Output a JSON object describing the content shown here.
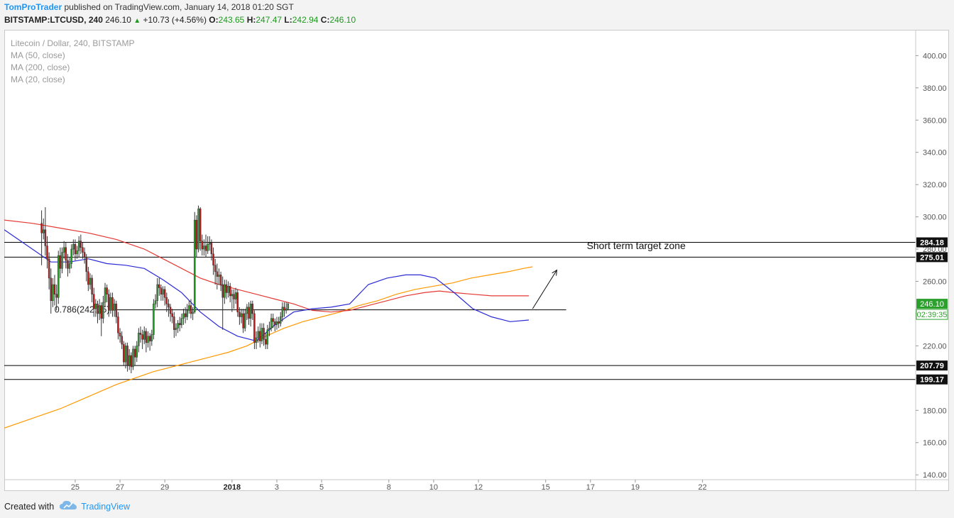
{
  "header": {
    "author": "TomProTrader",
    "published_text": "published on TradingView.com, January 14, 2018 01:20 SGT",
    "symbol_line": {
      "symbol": "BITSTAMP:LTCUSD, 240",
      "last": "246.10",
      "change": "+10.73 (+4.56%)",
      "o_label": "O:",
      "o_value": "243.65",
      "h_label": "H:",
      "h_value": "247.47",
      "l_label": "L:",
      "l_value": "242.94",
      "c_label": "C:",
      "c_value": "246.10"
    }
  },
  "legend": {
    "title": "Litecoin / Dollar, 240, BITSTAMP",
    "items": [
      "MA (50, close)",
      "MA (200, close)",
      "MA (20, close)"
    ]
  },
  "footer": {
    "created_with": "Created with",
    "brand": "TradingView"
  },
  "colors": {
    "up": "#2ca02c",
    "down": "#b81d1d",
    "ma50": "#e53935",
    "ma200": "#ff9800",
    "ma20": "#2a2ad6",
    "level_line": "#000000",
    "price_badge_green": "#2ca02c",
    "price_badge_black": "#111111"
  },
  "chart_data": {
    "type": "candlestick",
    "title": "Litecoin / Dollar, 240, BITSTAMP",
    "ylim": [
      137,
      416
    ],
    "x_range": [
      -20,
      326
    ],
    "y_ticks": [
      "140.00",
      "160.00",
      "180.00",
      "200.00",
      "220.00",
      "240.00",
      "260.00",
      "280.00",
      "300.00",
      "320.00",
      "340.00",
      "360.00",
      "380.00",
      "400.00"
    ],
    "x_ticks": [
      {
        "label": "25",
        "pos": 18
      },
      {
        "label": "27",
        "pos": 42
      },
      {
        "label": "29",
        "pos": 66
      },
      {
        "label": "2018",
        "pos": 102,
        "bold": true
      },
      {
        "label": "3",
        "pos": 126
      },
      {
        "label": "5",
        "pos": 150
      },
      {
        "label": "8",
        "pos": 186
      },
      {
        "label": "10",
        "pos": 210
      },
      {
        "label": "12",
        "pos": 234
      },
      {
        "label": "15",
        "pos": 270
      },
      {
        "label": "17",
        "pos": 294
      },
      {
        "label": "19",
        "pos": 318
      },
      {
        "label": "22",
        "pos": 354
      }
    ],
    "candles": [
      [
        296,
        290,
        304,
        270
      ],
      [
        290,
        292,
        299,
        286
      ],
      [
        292,
        282,
        306,
        276
      ],
      [
        282,
        274,
        288,
        268
      ],
      [
        274,
        262,
        278,
        255
      ],
      [
        262,
        248,
        268,
        240
      ],
      [
        248,
        258,
        262,
        244
      ],
      [
        258,
        252,
        264,
        245
      ],
      [
        252,
        250,
        258,
        242
      ],
      [
        250,
        276,
        279,
        246
      ],
      [
        276,
        268,
        281,
        262
      ],
      [
        268,
        278,
        281,
        265
      ],
      [
        278,
        281,
        285,
        274
      ],
      [
        281,
        273,
        284,
        268
      ],
      [
        273,
        268,
        277,
        263
      ],
      [
        268,
        271,
        275,
        265
      ],
      [
        271,
        280,
        283,
        268
      ],
      [
        280,
        283,
        286,
        276
      ],
      [
        283,
        277,
        286,
        273
      ],
      [
        277,
        279,
        282,
        274
      ],
      [
        279,
        285,
        288,
        275
      ],
      [
        285,
        281,
        289,
        277
      ],
      [
        281,
        278,
        284,
        274
      ],
      [
        278,
        275,
        281,
        271
      ],
      [
        275,
        266,
        277,
        260
      ],
      [
        266,
        258,
        269,
        254
      ],
      [
        258,
        262,
        265,
        255
      ],
      [
        262,
        252,
        264,
        247
      ],
      [
        252,
        243,
        256,
        238
      ],
      [
        243,
        246,
        249,
        238
      ],
      [
        246,
        240,
        248,
        234
      ],
      [
        240,
        245,
        249,
        236
      ],
      [
        245,
        237,
        247,
        226
      ],
      [
        237,
        247,
        251,
        234
      ],
      [
        247,
        256,
        259,
        244
      ],
      [
        256,
        252,
        258,
        247
      ],
      [
        252,
        242,
        255,
        238
      ],
      [
        242,
        250,
        253,
        240
      ],
      [
        250,
        242,
        253,
        238
      ],
      [
        242,
        246,
        249,
        238
      ],
      [
        246,
        238,
        248,
        234
      ],
      [
        238,
        228,
        241,
        224
      ],
      [
        228,
        226,
        231,
        222
      ],
      [
        226,
        221,
        229,
        218
      ],
      [
        221,
        210,
        223,
        208
      ],
      [
        210,
        220,
        222,
        206
      ],
      [
        220,
        208,
        222,
        204
      ],
      [
        208,
        214,
        218,
        205
      ],
      [
        214,
        207,
        216,
        203
      ],
      [
        207,
        218,
        220,
        205
      ],
      [
        218,
        213,
        220,
        208
      ],
      [
        213,
        220,
        223,
        210
      ],
      [
        220,
        228,
        231,
        216
      ],
      [
        228,
        227,
        232,
        222
      ],
      [
        227,
        224,
        230,
        218
      ],
      [
        224,
        229,
        232,
        221
      ],
      [
        229,
        222,
        231,
        216
      ],
      [
        222,
        226,
        229,
        219
      ],
      [
        226,
        223,
        228,
        217
      ],
      [
        223,
        227,
        230,
        220
      ],
      [
        227,
        246,
        249,
        224
      ],
      [
        246,
        248,
        252,
        243
      ],
      [
        248,
        258,
        262,
        244
      ],
      [
        258,
        256,
        262,
        251
      ],
      [
        256,
        252,
        258,
        248
      ],
      [
        252,
        255,
        257,
        248
      ],
      [
        255,
        250,
        257,
        245
      ],
      [
        250,
        246,
        253,
        241
      ],
      [
        246,
        244,
        249,
        238
      ],
      [
        244,
        240,
        246,
        235
      ],
      [
        240,
        238,
        243,
        234
      ],
      [
        238,
        230,
        241,
        225
      ],
      [
        230,
        231,
        234,
        226
      ],
      [
        231,
        234,
        236,
        228
      ],
      [
        234,
        233,
        238,
        229
      ],
      [
        233,
        237,
        240,
        231
      ],
      [
        237,
        240,
        243,
        233
      ],
      [
        240,
        238,
        244,
        234
      ],
      [
        238,
        242,
        246,
        236
      ],
      [
        242,
        245,
        248,
        240
      ],
      [
        245,
        240,
        249,
        237
      ],
      [
        240,
        241,
        244,
        236
      ],
      [
        241,
        298,
        303,
        240
      ],
      [
        298,
        280,
        301,
        275
      ],
      [
        280,
        305,
        307,
        278
      ],
      [
        305,
        285,
        306,
        279
      ],
      [
        285,
        280,
        289,
        276
      ],
      [
        280,
        282,
        286,
        276
      ],
      [
        282,
        279,
        289,
        275
      ],
      [
        279,
        283,
        288,
        277
      ],
      [
        283,
        284,
        288,
        279
      ],
      [
        284,
        277,
        286,
        273
      ],
      [
        277,
        270,
        281,
        264
      ],
      [
        270,
        266,
        274,
        258
      ],
      [
        266,
        263,
        271,
        255
      ],
      [
        263,
        264,
        268,
        258
      ],
      [
        264,
        258,
        266,
        254
      ],
      [
        258,
        250,
        263,
        230
      ],
      [
        250,
        258,
        261,
        246
      ],
      [
        258,
        253,
        261,
        249
      ],
      [
        253,
        257,
        260,
        250
      ],
      [
        257,
        251,
        259,
        247
      ],
      [
        251,
        252,
        255,
        241
      ],
      [
        252,
        249,
        255,
        243
      ],
      [
        249,
        253,
        256,
        246
      ],
      [
        253,
        241,
        255,
        238
      ],
      [
        241,
        238,
        244,
        233
      ],
      [
        238,
        240,
        243,
        234
      ],
      [
        240,
        231,
        243,
        228
      ],
      [
        231,
        240,
        243,
        229
      ],
      [
        240,
        244,
        246,
        236
      ],
      [
        244,
        237,
        247,
        233
      ],
      [
        237,
        246,
        248,
        232
      ],
      [
        246,
        240,
        248,
        236
      ],
      [
        240,
        222,
        242,
        218
      ],
      [
        222,
        225,
        229,
        218
      ],
      [
        225,
        229,
        232,
        222
      ],
      [
        229,
        223,
        234,
        219
      ],
      [
        223,
        231,
        234,
        221
      ],
      [
        231,
        224,
        234,
        220
      ],
      [
        224,
        221,
        228,
        218
      ],
      [
        221,
        230,
        233,
        218
      ],
      [
        230,
        231,
        235,
        226
      ],
      [
        231,
        237,
        240,
        229
      ],
      [
        237,
        235,
        240,
        231
      ],
      [
        235,
        233,
        237,
        229
      ],
      [
        233,
        235,
        238,
        230
      ],
      [
        235,
        234,
        238,
        231
      ],
      [
        234,
        238,
        241,
        232
      ],
      [
        238,
        244,
        247,
        235
      ],
      [
        244,
        242,
        247,
        238
      ],
      [
        242,
        243,
        247,
        240
      ],
      [
        243,
        246,
        247,
        242
      ]
    ],
    "ma50": [
      [
        -20,
        298
      ],
      [
        -5,
        296
      ],
      [
        10,
        293
      ],
      [
        25,
        290
      ],
      [
        40,
        286
      ],
      [
        55,
        280
      ],
      [
        65,
        274
      ],
      [
        75,
        268
      ],
      [
        85,
        262
      ],
      [
        95,
        258
      ],
      [
        105,
        255
      ],
      [
        115,
        252
      ],
      [
        125,
        249
      ],
      [
        135,
        246
      ],
      [
        145,
        242
      ],
      [
        155,
        241
      ],
      [
        165,
        242
      ],
      [
        175,
        245
      ],
      [
        185,
        248
      ],
      [
        195,
        251
      ],
      [
        205,
        253
      ],
      [
        213,
        254
      ],
      [
        221,
        253
      ],
      [
        231,
        252
      ],
      [
        241,
        251
      ],
      [
        251,
        251
      ],
      [
        261,
        251
      ]
    ],
    "ma200": [
      [
        -20,
        169
      ],
      [
        -5,
        175
      ],
      [
        10,
        181
      ],
      [
        20,
        186
      ],
      [
        30,
        191
      ],
      [
        40,
        196
      ],
      [
        50,
        200
      ],
      [
        60,
        204
      ],
      [
        70,
        207
      ],
      [
        80,
        210
      ],
      [
        90,
        213
      ],
      [
        100,
        216
      ],
      [
        110,
        220
      ],
      [
        120,
        226
      ],
      [
        130,
        231
      ],
      [
        140,
        235
      ],
      [
        150,
        238
      ],
      [
        160,
        241
      ],
      [
        170,
        245
      ],
      [
        180,
        248
      ],
      [
        190,
        252
      ],
      [
        200,
        255
      ],
      [
        210,
        257
      ],
      [
        220,
        259
      ],
      [
        230,
        262
      ],
      [
        240,
        264
      ],
      [
        250,
        266
      ],
      [
        258,
        268
      ],
      [
        263,
        269
      ]
    ],
    "ma20": [
      [
        -20,
        292
      ],
      [
        -5,
        280
      ],
      [
        5,
        272
      ],
      [
        15,
        272
      ],
      [
        25,
        274
      ],
      [
        35,
        271
      ],
      [
        45,
        270
      ],
      [
        55,
        268
      ],
      [
        65,
        261
      ],
      [
        75,
        253
      ],
      [
        85,
        241
      ],
      [
        95,
        232
      ],
      [
        105,
        226
      ],
      [
        115,
        223
      ],
      [
        125,
        233
      ],
      [
        135,
        241
      ],
      [
        145,
        243
      ],
      [
        155,
        244
      ],
      [
        165,
        246
      ],
      [
        175,
        258
      ],
      [
        185,
        262
      ],
      [
        195,
        264
      ],
      [
        203,
        264
      ],
      [
        211,
        262
      ],
      [
        221,
        253
      ],
      [
        231,
        243
      ],
      [
        241,
        238
      ],
      [
        251,
        235
      ],
      [
        261,
        236
      ]
    ],
    "horizontal_levels": [
      {
        "value": 284.18,
        "label": "284.18"
      },
      {
        "value": 275.01,
        "label": "275.01"
      },
      {
        "value": 207.79,
        "label": "207.79"
      },
      {
        "value": 199.17,
        "label": "199.17"
      }
    ],
    "fib_level": {
      "value": 242.35,
      "label": "0.786(242.35)",
      "x_start": 38,
      "x_end": 281
    },
    "annotation": {
      "text": "Short term target zone",
      "x": 292,
      "y": 280
    },
    "arrow": {
      "from": [
        263,
        243
      ],
      "to": [
        276,
        267
      ]
    },
    "last_price": {
      "value": 246.1,
      "label": "246.10",
      "countdown": "02:39:35"
    }
  }
}
